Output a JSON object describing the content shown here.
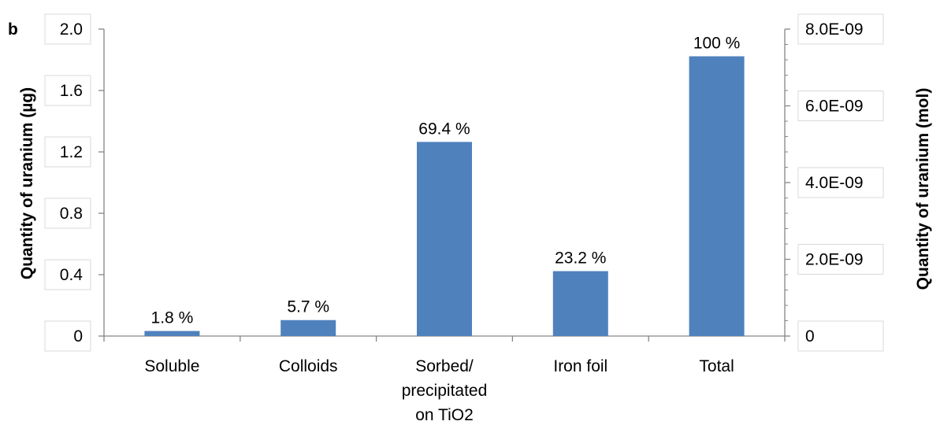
{
  "chart_data": {
    "type": "bar",
    "panel_letter": "b",
    "categories": [
      [
        "Soluble"
      ],
      [
        "Colloids"
      ],
      [
        "Sorbed/",
        "precipitated",
        "on TiO2"
      ],
      [
        "Iron foil"
      ],
      [
        "Total"
      ]
    ],
    "series": [
      {
        "values": [
          0.033,
          0.104,
          1.265,
          0.423,
          1.823
        ],
        "data_labels": [
          "1.8 %",
          "5.7 %",
          "69.4 %",
          "23.2 %",
          "100 %"
        ],
        "color": "#4f81bd"
      }
    ],
    "ylabel": "Quantity of uranium (µg)",
    "ylim": [
      0,
      2.0
    ],
    "yticks": [
      0,
      0.4,
      0.8,
      1.2,
      1.6,
      2.0
    ],
    "ytick_labels": [
      "0",
      "0.4",
      "0.8",
      "1.2",
      "1.6",
      "2.0"
    ],
    "y2label": "Quantity of uranium (mol)",
    "y2lim": [
      0,
      8e-09
    ],
    "y2ticks": [
      0,
      2e-09,
      4e-09,
      6e-09,
      8e-09
    ],
    "y2tick_labels": [
      "0",
      "2.0E-09",
      "4.0E-09",
      "6.0E-09",
      "8.0E-09"
    ],
    "grid": false,
    "legend": "none",
    "axis_color": "#868686"
  }
}
